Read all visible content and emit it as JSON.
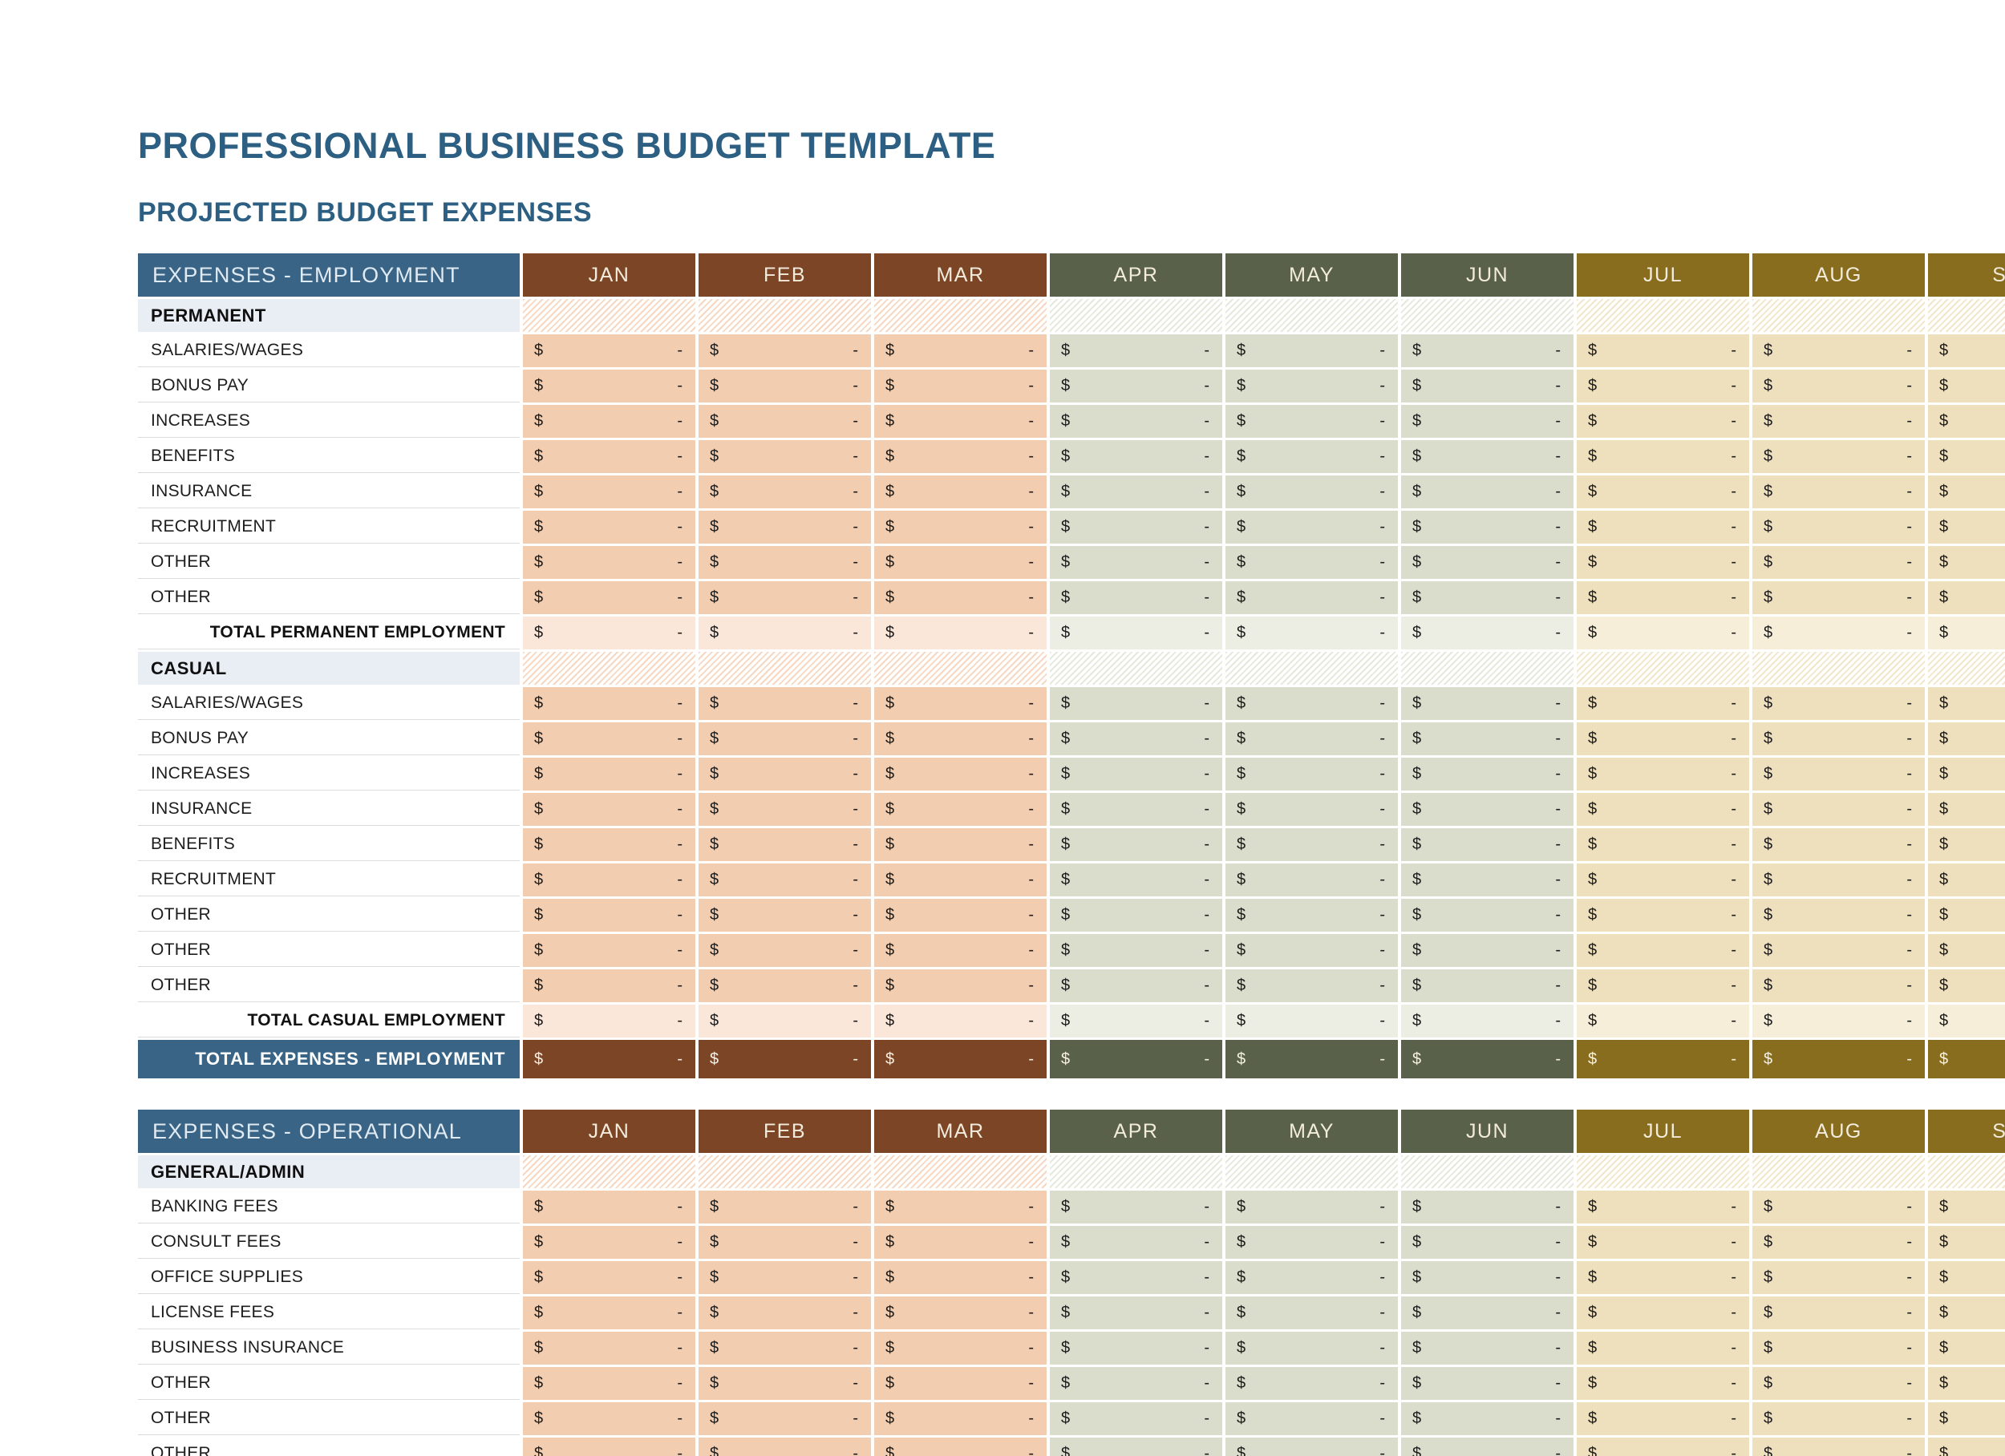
{
  "page": {
    "title": "PROFESSIONAL BUSINESS BUDGET TEMPLATE",
    "subtitle": "PROJECTED BUDGET EXPENSES"
  },
  "cell": {
    "currency": "$",
    "value": "-"
  },
  "months": [
    {
      "label": "JAN",
      "group": "q1"
    },
    {
      "label": "FEB",
      "group": "q1"
    },
    {
      "label": "MAR",
      "group": "q1"
    },
    {
      "label": "APR",
      "group": "q2"
    },
    {
      "label": "MAY",
      "group": "q2"
    },
    {
      "label": "JUN",
      "group": "q2"
    },
    {
      "label": "JUL",
      "group": "q3"
    },
    {
      "label": "AUG",
      "group": "q3"
    },
    {
      "label": "SEP",
      "group": "q3"
    }
  ],
  "tables": [
    {
      "id": "employment",
      "header": "EXPENSES - EMPLOYMENT",
      "rows": [
        {
          "type": "section",
          "label": "PERMANENT"
        },
        {
          "type": "data",
          "label": "SALARIES/WAGES"
        },
        {
          "type": "data",
          "label": "BONUS PAY"
        },
        {
          "type": "data",
          "label": "INCREASES"
        },
        {
          "type": "data",
          "label": "BENEFITS"
        },
        {
          "type": "data",
          "label": "INSURANCE"
        },
        {
          "type": "data",
          "label": "RECRUITMENT"
        },
        {
          "type": "data",
          "label": "OTHER"
        },
        {
          "type": "data",
          "label": "OTHER"
        },
        {
          "type": "subtotal",
          "label": "TOTAL PERMANENT EMPLOYMENT"
        },
        {
          "type": "section",
          "label": "CASUAL"
        },
        {
          "type": "data",
          "label": "SALARIES/WAGES"
        },
        {
          "type": "data",
          "label": "BONUS PAY"
        },
        {
          "type": "data",
          "label": "INCREASES"
        },
        {
          "type": "data",
          "label": "INSURANCE"
        },
        {
          "type": "data",
          "label": "BENEFITS"
        },
        {
          "type": "data",
          "label": "RECRUITMENT"
        },
        {
          "type": "data",
          "label": "OTHER"
        },
        {
          "type": "data",
          "label": "OTHER"
        },
        {
          "type": "data",
          "label": "OTHER"
        },
        {
          "type": "subtotal",
          "label": "TOTAL CASUAL EMPLOYMENT"
        },
        {
          "type": "grandtotal",
          "label": "TOTAL EXPENSES - EMPLOYMENT"
        }
      ]
    },
    {
      "id": "operational",
      "header": "EXPENSES - OPERATIONAL",
      "rows": [
        {
          "type": "section",
          "label": "GENERAL/ADMIN"
        },
        {
          "type": "data",
          "label": "BANKING FEES"
        },
        {
          "type": "data",
          "label": "CONSULT FEES"
        },
        {
          "type": "data",
          "label": "OFFICE SUPPLIES"
        },
        {
          "type": "data",
          "label": "LICENSE FEES"
        },
        {
          "type": "data",
          "label": "BUSINESS INSURANCE"
        },
        {
          "type": "data",
          "label": "OTHER"
        },
        {
          "type": "data",
          "label": "OTHER"
        },
        {
          "type": "data",
          "label": "OTHER"
        }
      ]
    }
  ],
  "colors": {
    "title_text": "#2C5F82",
    "header_blue": "#3A6486",
    "q1_dark": "#7B4526",
    "q2_dark": "#5A614A",
    "q3_dark": "#876D1D",
    "q1_cell": "#F3CDB0",
    "q2_cell": "#DADDCC",
    "q3_cell": "#EEDFBD",
    "q1_subtotal": "#FAE7DA",
    "q2_subtotal": "#EDEEE3",
    "q3_subtotal": "#F7EEDA",
    "section_row_bg": "#E9EEF5",
    "header_text": "#F3ECDD"
  }
}
